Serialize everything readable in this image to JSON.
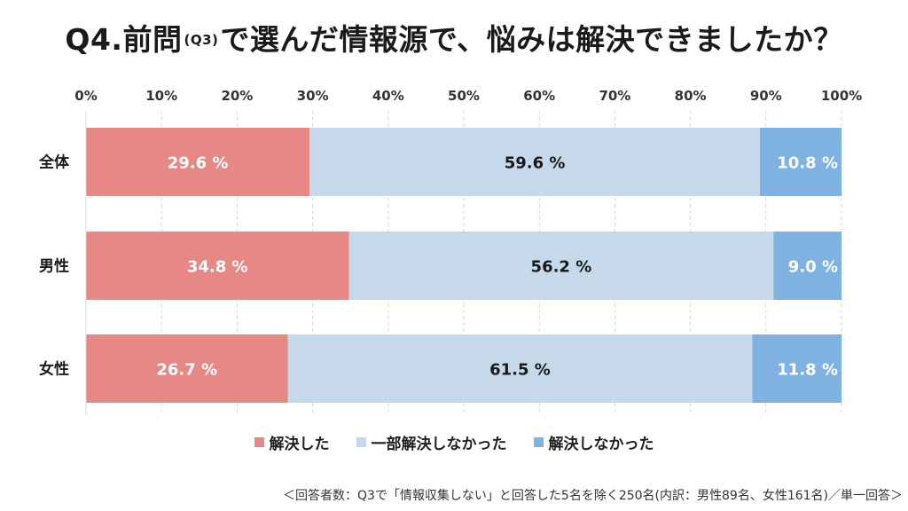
{
  "title": {
    "prefix": "Q4.前問",
    "small": "(Q3)",
    "suffix": "で選んだ情報源で、悩みは解決できましたか？"
  },
  "chart_data": {
    "type": "bar",
    "orientation": "horizontal",
    "stacked": true,
    "categories": [
      "全体",
      "男性",
      "女性"
    ],
    "series": [
      {
        "name": "解決した",
        "color": "#e58886",
        "values": [
          29.6,
          34.8,
          26.7
        ],
        "labels": [
          "29.6 %",
          "34.8 %",
          "26.7 %"
        ],
        "label_color": "#ffffff"
      },
      {
        "name": "一部解決しなかった",
        "color": "#c6d9ea",
        "values": [
          59.6,
          56.2,
          61.5
        ],
        "labels": [
          "59.6 %",
          "56.2 %",
          "61.5 %"
        ],
        "label_color": "#1a1a1a"
      },
      {
        "name": "解決しなかった",
        "color": "#7fb2e0",
        "values": [
          10.8,
          9.0,
          11.8
        ],
        "labels": [
          "10.8 %",
          "9.0 %",
          "11.8 %"
        ],
        "label_color": "#ffffff"
      }
    ],
    "x_ticks": [
      "0%",
      "10%",
      "20%",
      "30%",
      "40%",
      "50%",
      "60%",
      "70%",
      "80%",
      "90%",
      "100%"
    ],
    "xlim": [
      0,
      100
    ],
    "grid": true,
    "legend_position": "bottom"
  },
  "footnote": "＜回答者数：Q3で「情報収集しない」と回答した5名を除く250名(内訳：男性89名、女性161名)／単一回答＞"
}
